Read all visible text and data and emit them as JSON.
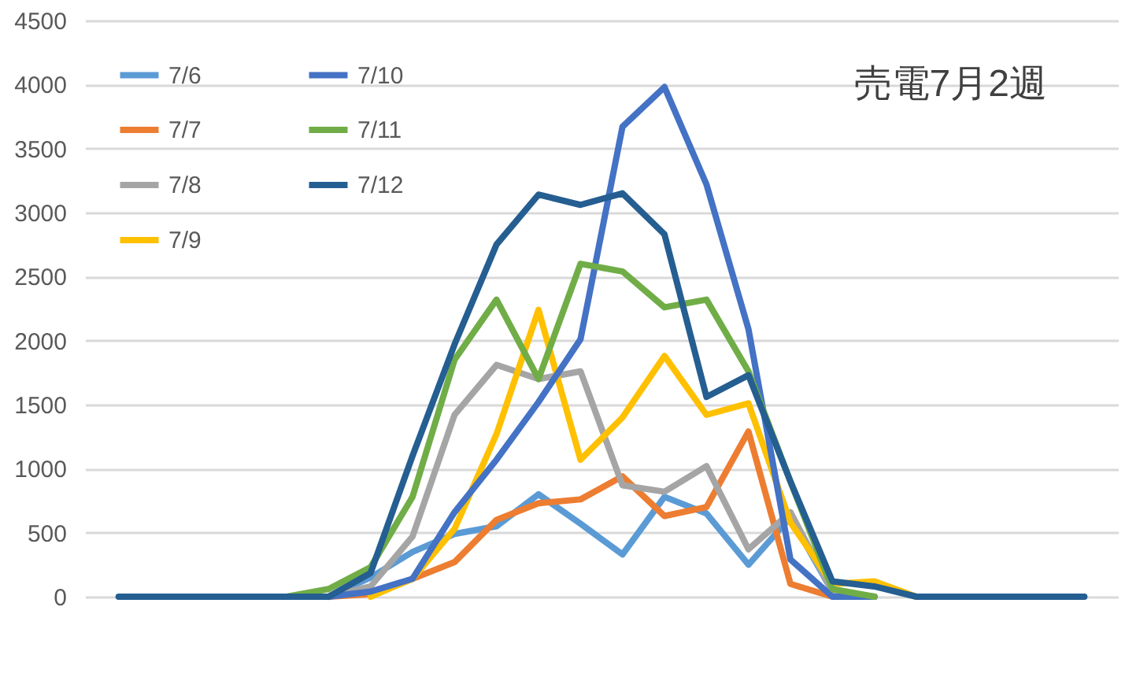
{
  "chart_data": {
    "type": "line",
    "title": "売電7月2週",
    "categories": [
      null,
      null,
      null,
      null,
      null,
      null,
      null,
      null,
      null,
      null,
      null,
      null,
      null,
      null,
      null,
      null,
      null,
      null,
      null,
      null,
      null,
      null,
      null,
      null
    ],
    "ylim": [
      0,
      4500
    ],
    "yticks": [
      0,
      500,
      1000,
      1500,
      2000,
      2500,
      3000,
      3500,
      4000,
      4500
    ],
    "grid": "y",
    "legend": "top left",
    "tick_labels": "y",
    "line_style": "solid",
    "marker": "none",
    "series": [
      {
        "name": "7/6",
        "color": "#5b9bd5",
        "values": [
          null,
          null,
          null,
          null,
          null,
          0,
          150,
          350,
          490,
          550,
          800,
          570,
          330,
          780,
          650,
          250,
          620,
          40,
          0,
          null,
          null,
          null,
          null,
          null
        ]
      },
      {
        "name": "7/7",
        "color": "#ed7d31",
        "values": [
          null,
          null,
          null,
          null,
          null,
          0,
          20,
          140,
          270,
          600,
          730,
          760,
          940,
          630,
          700,
          1290,
          100,
          0,
          0,
          null,
          null,
          null,
          null,
          null
        ]
      },
      {
        "name": "7/8",
        "color": "#a5a5a5",
        "values": [
          null,
          null,
          null,
          null,
          null,
          0,
          80,
          470,
          1420,
          1810,
          1700,
          1760,
          870,
          820,
          1020,
          370,
          660,
          40,
          0,
          null,
          null,
          null,
          null,
          null
        ]
      },
      {
        "name": "7/9",
        "color": "#ffc000",
        "values": [
          null,
          null,
          null,
          null,
          null,
          null,
          0,
          140,
          530,
          1270,
          2240,
          1070,
          1400,
          1880,
          1420,
          1510,
          580,
          100,
          120,
          0,
          null,
          null,
          null,
          null
        ]
      },
      {
        "name": "7/10",
        "color": "#4472c4",
        "values": [
          null,
          null,
          null,
          null,
          null,
          0,
          40,
          140,
          660,
          1070,
          1520,
          2010,
          3670,
          3980,
          3220,
          2090,
          290,
          0,
          0,
          null,
          null,
          null,
          null,
          null
        ]
      },
      {
        "name": "7/11",
        "color": "#70ad47",
        "values": [
          null,
          null,
          null,
          null,
          0,
          60,
          230,
          780,
          1850,
          2320,
          1700,
          2600,
          2540,
          2260,
          2320,
          1760,
          900,
          60,
          0,
          null,
          null,
          null,
          null,
          null
        ]
      },
      {
        "name": "7/12",
        "color": "#255e91",
        "values": [
          0,
          0,
          0,
          0,
          0,
          0,
          185,
          1100,
          1970,
          2750,
          3140,
          3060,
          3150,
          2830,
          1560,
          1730,
          900,
          120,
          80,
          0,
          0,
          0,
          0,
          0
        ]
      }
    ]
  }
}
